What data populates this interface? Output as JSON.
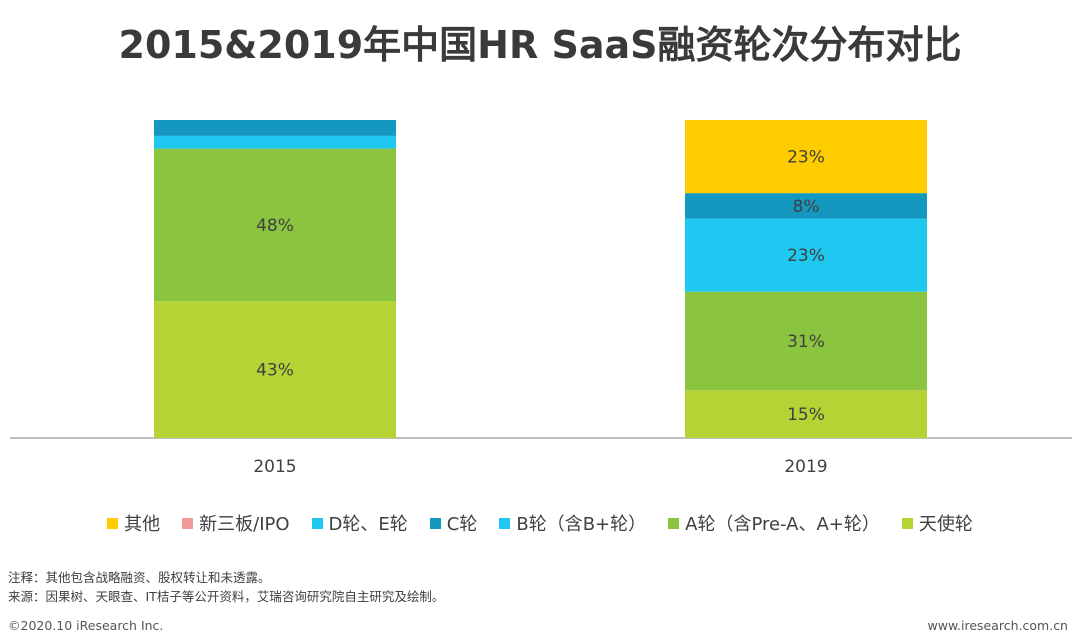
{
  "title": "2015&2019年中国HR SaaS融资轮次分布对比",
  "chart_data": {
    "type": "bar",
    "stacked": true,
    "percent": true,
    "categories": [
      "2015",
      "2019"
    ],
    "series": [
      {
        "name": "天使轮",
        "color": "#b5d334",
        "values": [
          43,
          15
        ]
      },
      {
        "name": "A轮（含Pre-A、A+轮）",
        "color": "#8bc43f",
        "values": [
          48,
          31
        ]
      },
      {
        "name": "B轮（含B+轮）",
        "color": "#1ec8f0",
        "values": [
          4,
          23
        ]
      },
      {
        "name": "C轮",
        "color": "#1598c0",
        "values": [
          5,
          8
        ]
      },
      {
        "name": "D轮、E轮",
        "color": "#1ec8f0",
        "values": [
          0,
          0
        ]
      },
      {
        "name": "新三板/IPO",
        "color": "#f29a9a",
        "values": [
          0,
          0
        ]
      },
      {
        "name": "其他",
        "color": "#ffcc00",
        "values": [
          0,
          23
        ]
      }
    ],
    "data_labels": {
      "2015": {
        "天使轮": "43%",
        "A轮（含Pre-A、A+轮）": "48%"
      },
      "2019": {
        "天使轮": "15%",
        "A轮（含Pre-A、A+轮）": "31%",
        "B轮（含B+轮）": "23%",
        "C轮": "8%",
        "其他": "23%"
      }
    },
    "ylim": [
      0,
      100
    ],
    "grid": false,
    "legend_position": "bottom"
  },
  "legend": [
    {
      "label": "其他",
      "color": "#ffcc00"
    },
    {
      "label": "新三板/IPO",
      "color": "#f29a9a"
    },
    {
      "label": "D轮、E轮",
      "color": "#1ec8f0"
    },
    {
      "label": "C轮",
      "color": "#1598c0"
    },
    {
      "label": "B轮（含B+轮）",
      "color": "#1ec8f0"
    },
    {
      "label": "A轮（含Pre-A、A+轮）",
      "color": "#8bc43f"
    },
    {
      "label": "天使轮",
      "color": "#b5d334"
    }
  ],
  "notes": {
    "note": "注释：其他包含战略融资、股权转让和未透露。",
    "source": "来源：因果树、天眼查、IT桔子等公开资料，艾瑞咨询研究院自主研究及绘制。"
  },
  "footer": {
    "copyright": "©2020.10 iResearch Inc.",
    "website": "www.iresearch.com.cn"
  }
}
